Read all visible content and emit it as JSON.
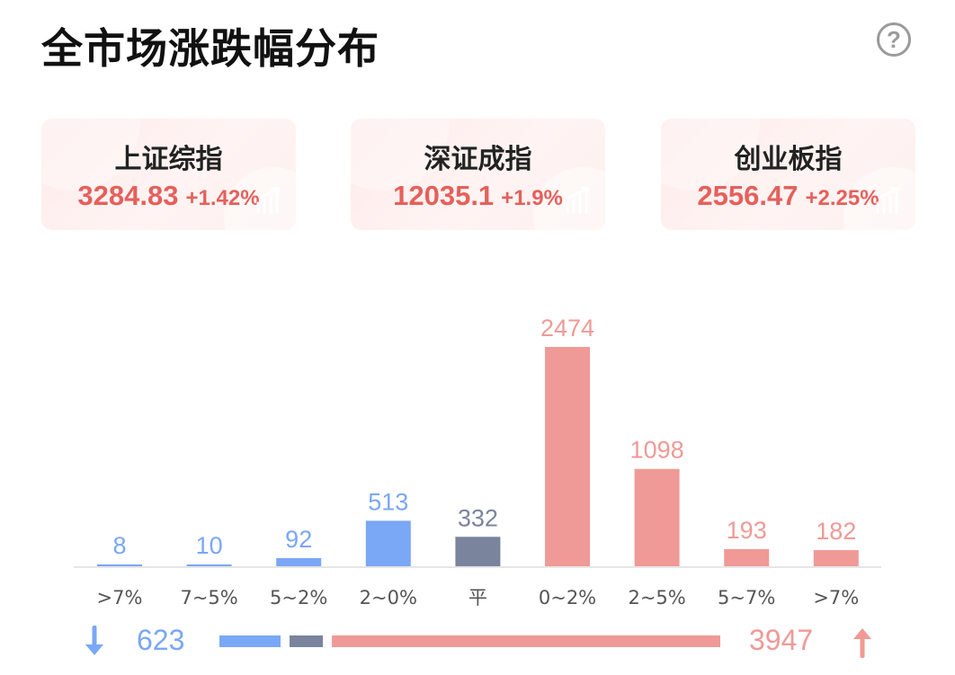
{
  "header": {
    "title": "全市场涨跌幅分布",
    "help_icon": "question-circle-icon",
    "help_glyph": "?"
  },
  "indices": [
    {
      "name": "上证综指",
      "value": "3284.83",
      "change": "+1.42%",
      "icon": "trend-up-icon"
    },
    {
      "name": "深证成指",
      "value": "12035.1",
      "change": "+1.9%",
      "icon": "trend-up-icon"
    },
    {
      "name": "创业板指",
      "value": "2556.47",
      "change": "+2.25%",
      "icon": "trend-up-icon"
    }
  ],
  "colors": {
    "down": "#7aa7f6",
    "flat": "#7a849c",
    "up": "#ef9a96",
    "up_text": "#e5605b",
    "axis": "#e6e6e6",
    "tick": "#555555"
  },
  "chart_data": {
    "type": "bar",
    "categories": [
      ">7%",
      "7~5%",
      "5~2%",
      "2~0%",
      "平",
      "0~2%",
      "2~5%",
      "5~7%",
      ">7%"
    ],
    "values": [
      8,
      10,
      92,
      513,
      332,
      2474,
      1098,
      193,
      182
    ],
    "groups": [
      "down",
      "down",
      "down",
      "down",
      "flat",
      "up",
      "up",
      "up",
      "up"
    ],
    "title": "",
    "xlabel": "",
    "ylabel": "",
    "ylim": [
      0,
      2474
    ],
    "grid": false,
    "legend": "none"
  },
  "summary": {
    "down_total": "623",
    "up_total": "3947",
    "down_icon": "arrow-down-icon",
    "up_icon": "arrow-up-icon"
  }
}
